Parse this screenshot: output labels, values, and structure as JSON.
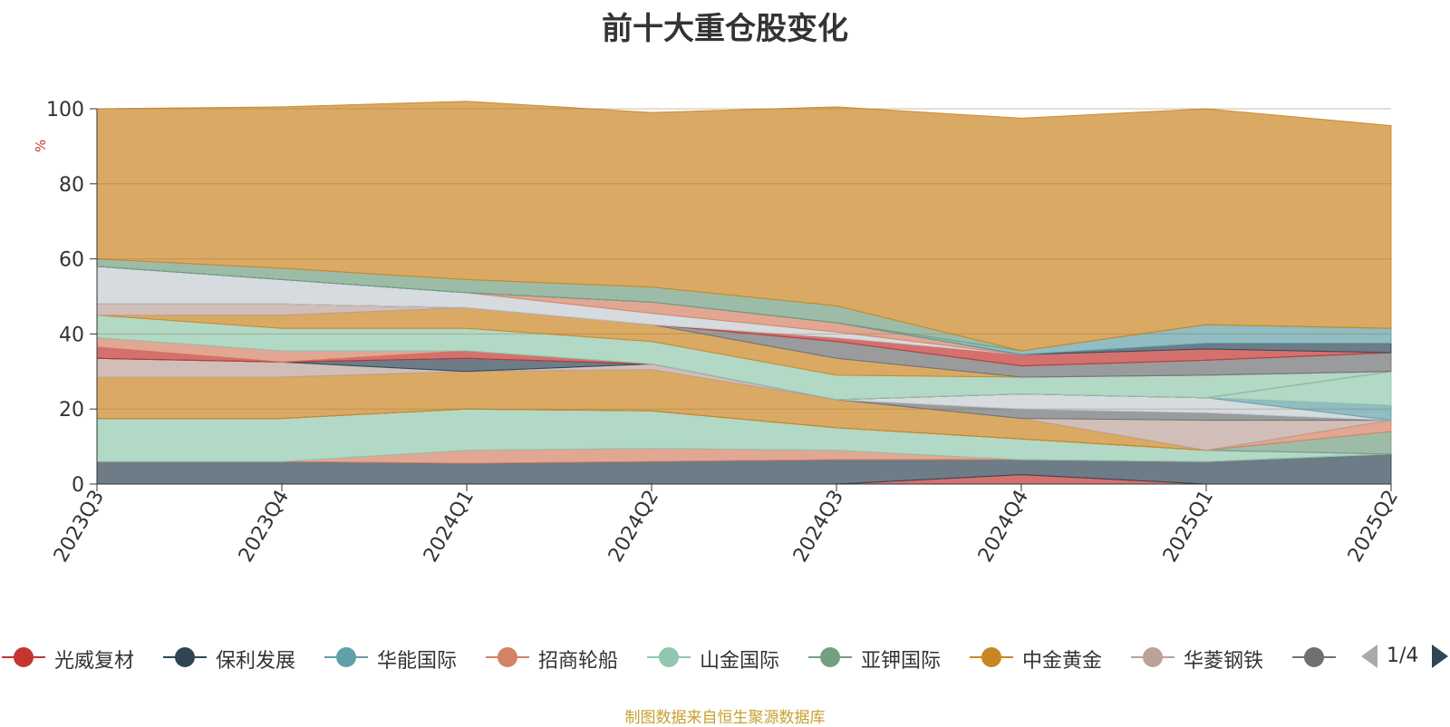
{
  "title": "前十大重仓股变化",
  "source_note": "制图数据来自恒生聚源数据库",
  "legend": {
    "items": [
      {
        "name": "光威复材",
        "color": "#c23531"
      },
      {
        "name": "保利发展",
        "color": "#2f4554"
      },
      {
        "name": "华能国际",
        "color": "#61a0a8"
      },
      {
        "name": "招商轮船",
        "color": "#d48265"
      },
      {
        "name": "山金国际",
        "color": "#91c7ae"
      },
      {
        "name": "亚钾国际",
        "color": "#749f83"
      },
      {
        "name": "中金黄金",
        "color": "#ca8622"
      },
      {
        "name": "华菱钢铁",
        "color": "#bda29a"
      },
      {
        "name": "...",
        "color": "#6e7074"
      }
    ],
    "page": "1/4"
  },
  "chart_data": {
    "type": "area",
    "stacked": true,
    "title": "前十大重仓股变化",
    "ylabel": "%",
    "ylim": [
      0,
      100
    ],
    "yticks": [
      0,
      20,
      40,
      60,
      80,
      100
    ],
    "grid": true,
    "x": [
      "2023Q3",
      "2023Q4",
      "2024Q1",
      "2024Q2",
      "2024Q3",
      "2024Q4",
      "2025Q1",
      "2025Q2"
    ],
    "series": [
      {
        "color": "#c23531",
        "values": [
          0,
          0,
          0,
          0,
          0,
          2.5,
          0,
          0
        ]
      },
      {
        "color": "#2f4554",
        "values": [
          6,
          6,
          5.5,
          6,
          6.5,
          4,
          6,
          8
        ]
      },
      {
        "color": "#d48265",
        "values": [
          0,
          0,
          3.5,
          3.5,
          2.5,
          0,
          0,
          0
        ]
      },
      {
        "color": "#91c7ae",
        "values": [
          11.5,
          11.5,
          11,
          10,
          6,
          5.5,
          3,
          0
        ]
      },
      {
        "color": "#61a0a8",
        "values": [
          0,
          0,
          0,
          0,
          0,
          0,
          0,
          0
        ]
      },
      {
        "color": "#749f83",
        "values": [
          0,
          0,
          0,
          0,
          0,
          0,
          0,
          6
        ]
      },
      {
        "color": "#d48265",
        "values": [
          0,
          0,
          0,
          0,
          0,
          0,
          0,
          3
        ]
      },
      {
        "color": "#ca8622",
        "values": [
          11,
          11,
          10,
          11,
          7.5,
          5.5,
          0,
          0
        ]
      },
      {
        "color": "#bda29a",
        "values": [
          5,
          4,
          0,
          1.5,
          0,
          0,
          8,
          0
        ]
      },
      {
        "color": "#6e7074",
        "values": [
          0,
          0,
          0,
          0,
          0,
          2.5,
          2,
          0
        ]
      },
      {
        "color": "#c4ccd3",
        "values": [
          0,
          0,
          0,
          0,
          0,
          4,
          4,
          0
        ]
      },
      {
        "color": "#61a0a8",
        "values": [
          0,
          0,
          0,
          0,
          0,
          0,
          0,
          4
        ]
      },
      {
        "color": "#91c7ae",
        "values": [
          0,
          0,
          0,
          0,
          0,
          0,
          0,
          9
        ]
      },
      {
        "color": "#2f4554",
        "values": [
          0,
          0,
          3.5,
          0,
          0,
          0,
          0,
          0
        ]
      },
      {
        "color": "#c23531",
        "values": [
          3,
          0,
          2,
          0,
          0,
          0,
          0,
          0
        ]
      },
      {
        "color": "#d48265",
        "values": [
          2.5,
          3,
          0,
          0,
          0,
          0,
          0,
          0
        ]
      },
      {
        "color": "#91c7ae",
        "values": [
          6,
          6,
          6,
          6,
          6.5,
          4.5,
          6,
          0
        ]
      },
      {
        "color": "#ca8622",
        "values": [
          0,
          3.5,
          5.5,
          4.5,
          4.5,
          0,
          0,
          0
        ]
      },
      {
        "color": "#bda29a",
        "values": [
          3,
          3,
          0,
          0,
          0,
          0,
          0,
          0
        ]
      },
      {
        "color": "#6e7074",
        "values": [
          0,
          0,
          0,
          0,
          4.5,
          3,
          4,
          5
        ]
      },
      {
        "color": "#749f83",
        "values": [
          0,
          0,
          0,
          0,
          0,
          0,
          0,
          0
        ]
      },
      {
        "color": "#61a0a8",
        "values": [
          0,
          0,
          0,
          0,
          0,
          0,
          0,
          0
        ]
      },
      {
        "color": "#c23531",
        "values": [
          0,
          0,
          0,
          0,
          1,
          3,
          3,
          0
        ]
      },
      {
        "color": "#c4ccd3",
        "values": [
          10,
          6.5,
          4,
          3,
          1.5,
          0,
          0,
          0
        ]
      },
      {
        "color": "#d48265",
        "values": [
          0,
          0,
          0,
          3,
          2.5,
          0,
          0,
          0
        ]
      },
      {
        "color": "#2f4554",
        "values": [
          0,
          0,
          0,
          0,
          0,
          0,
          1.5,
          2.5
        ]
      },
      {
        "color": "#61a0a8",
        "values": [
          0,
          0,
          0,
          0,
          0,
          1,
          5,
          4
        ]
      },
      {
        "color": "#749f83",
        "values": [
          2,
          3,
          3.5,
          4,
          4.5,
          0,
          0,
          0
        ]
      },
      {
        "color": "#ca8622",
        "values": [
          40,
          43,
          47.5,
          46.5,
          53,
          62,
          57.5,
          54
        ]
      }
    ]
  }
}
